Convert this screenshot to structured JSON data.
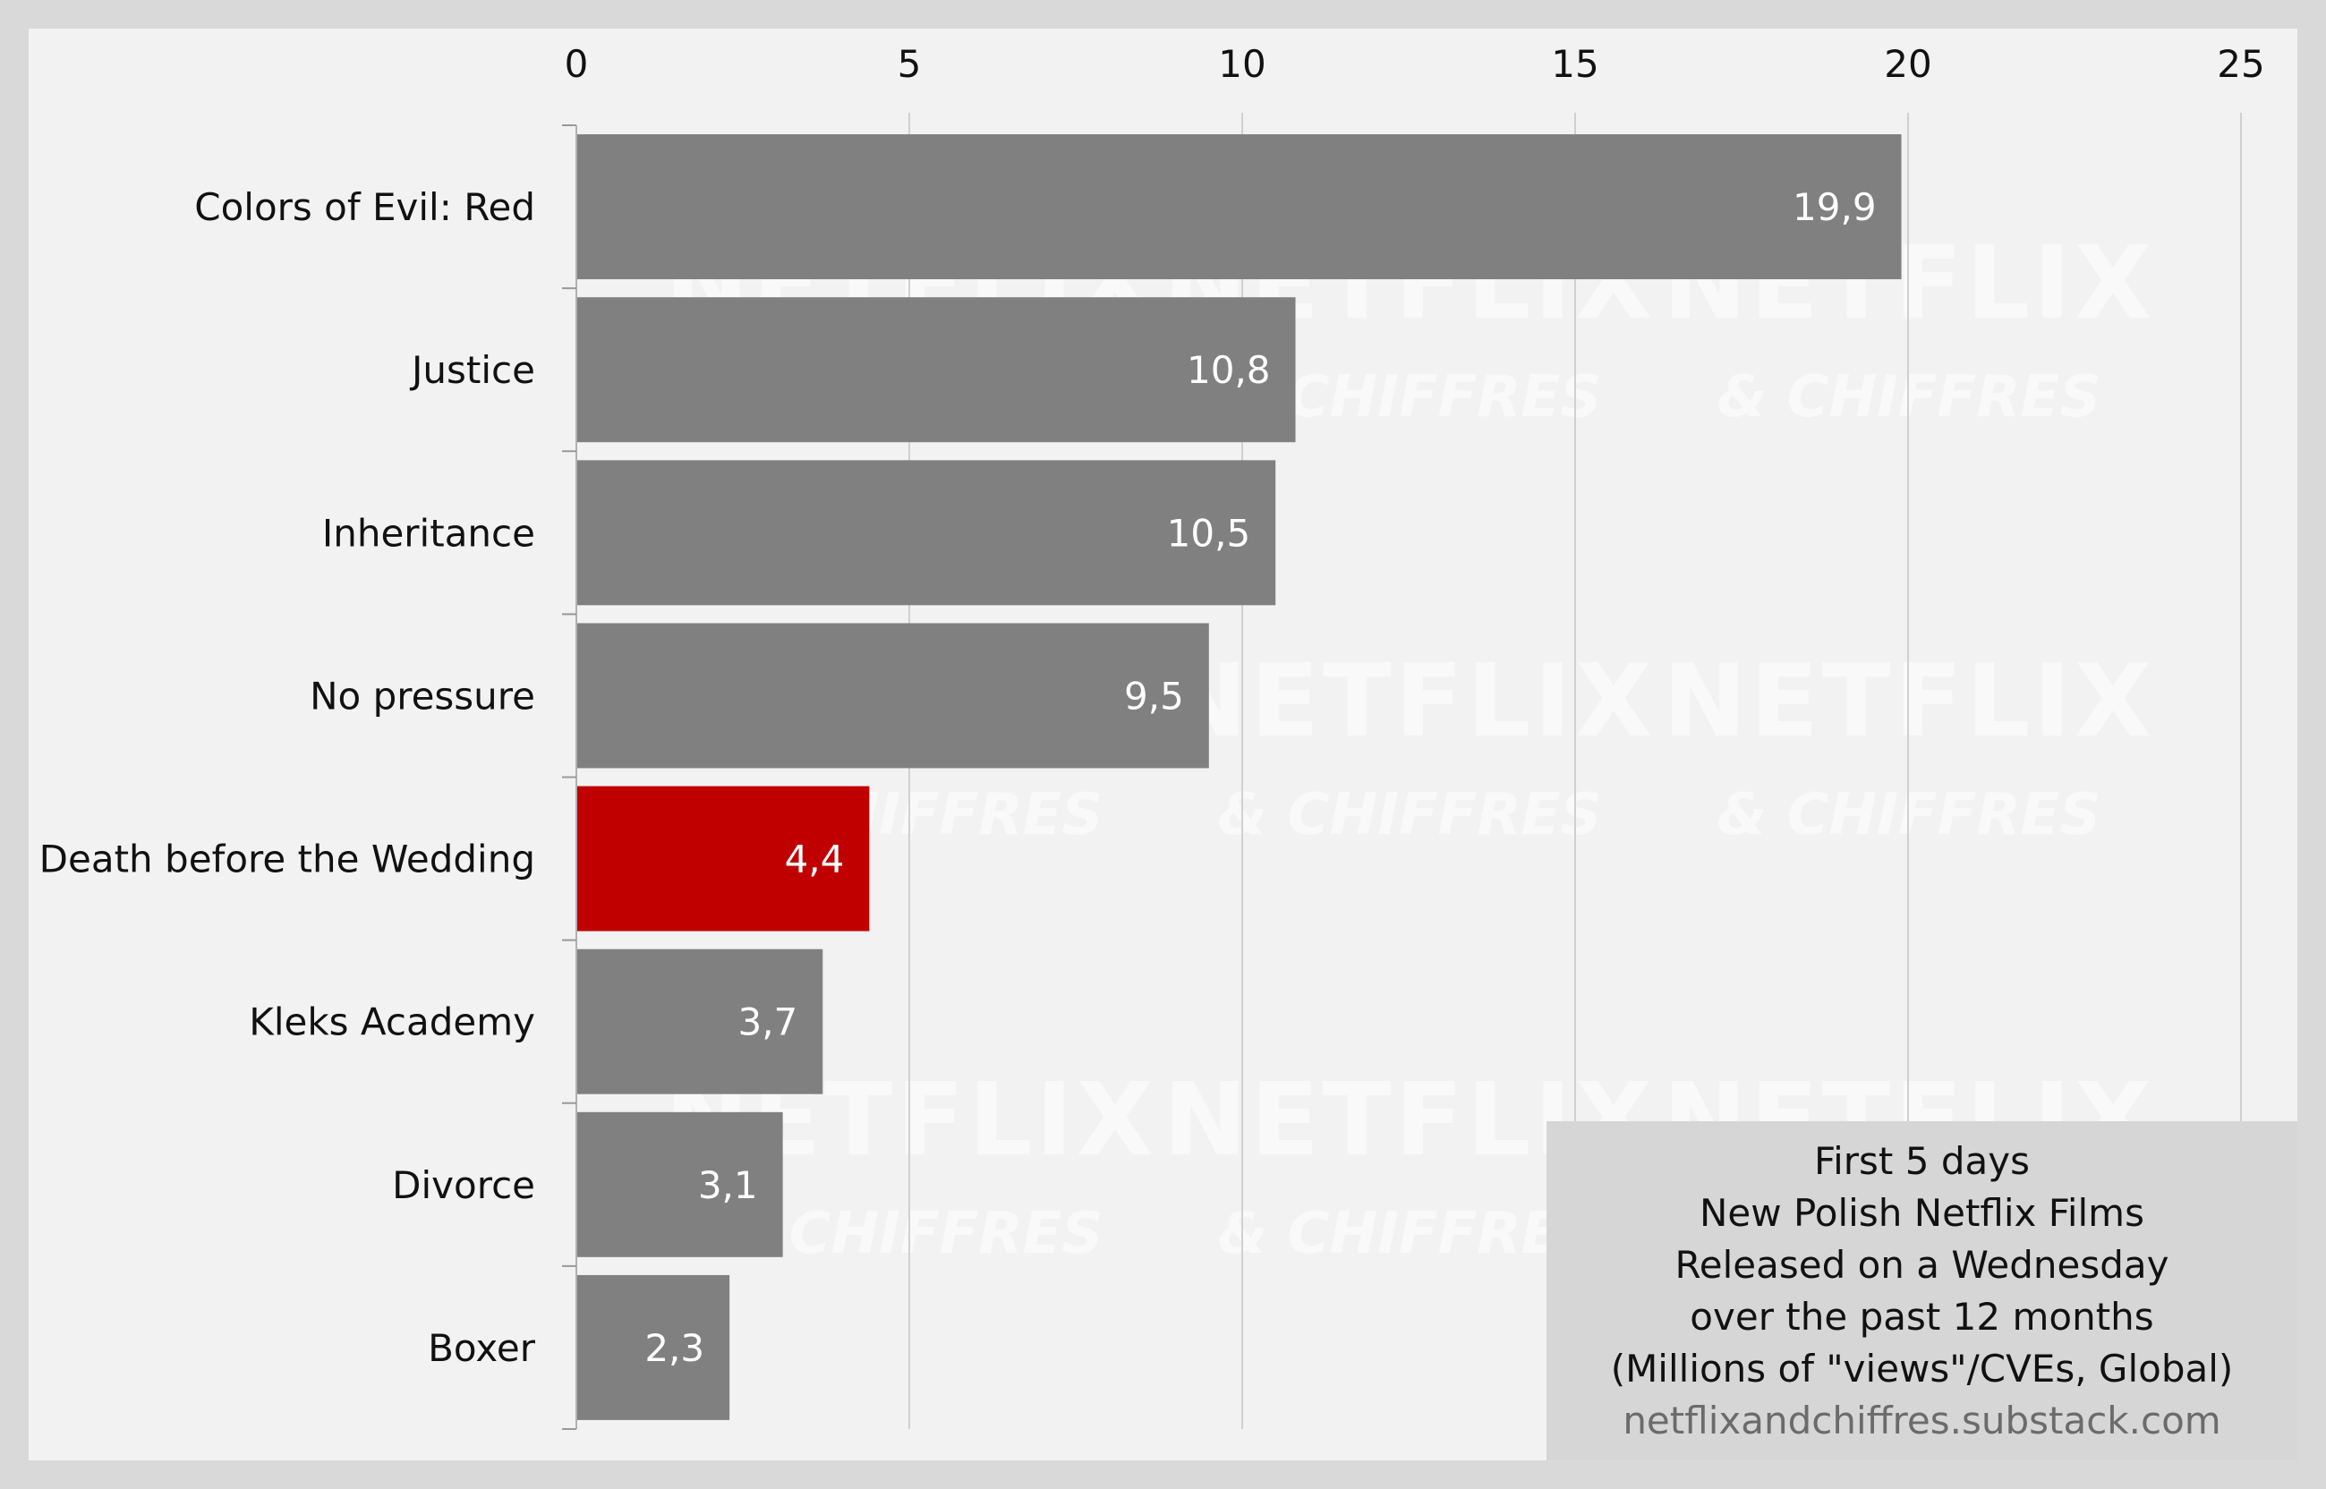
{
  "chart_data": {
    "type": "bar",
    "orientation": "horizontal",
    "categories": [
      "Colors of Evil: Red",
      "Justice",
      "Inheritance",
      "No pressure",
      "Death before the Wedding",
      "Kleks Academy",
      "Divorce",
      "Boxer"
    ],
    "values": [
      19.9,
      10.8,
      10.5,
      9.5,
      4.4,
      3.7,
      3.1,
      2.3
    ],
    "value_labels": [
      "19,9",
      "10,8",
      "10,5",
      "9,5",
      "4,4",
      "3,7",
      "3,1",
      "2,3"
    ],
    "highlight_index": 4,
    "xlim": [
      0,
      25
    ],
    "x_ticks": [
      0,
      5,
      10,
      15,
      20,
      25
    ],
    "x_axis_position": "top",
    "grid": true,
    "colors": {
      "bar": "#808080",
      "highlight": "#c00000",
      "grid": "#d0d0d0",
      "plot_bg": "#f2f2f2",
      "outer_bg": "#d9d9d9"
    }
  },
  "caption": {
    "lines": [
      "First 5 days",
      "New Polish Netflix Films",
      "Released on a Wednesday",
      "over the past 12 months",
      "(Millions of \"views\"/CVEs, Global)"
    ],
    "source": "netflixandchiffres.substack.com"
  },
  "watermark": {
    "line1": "NETFLIX",
    "line2": "& CHIFFRES"
  }
}
